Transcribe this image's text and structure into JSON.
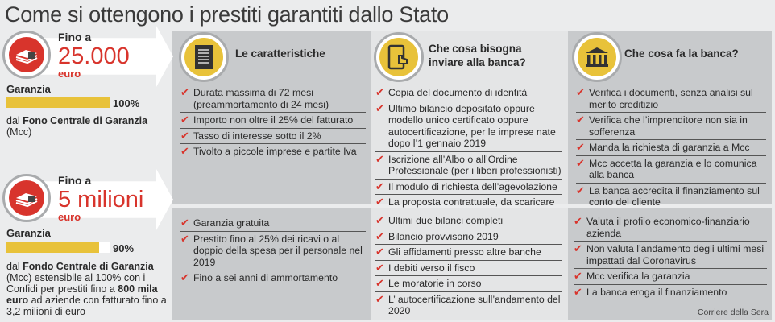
{
  "title": "Come si ottengono i prestiti garantiti dallo Stato",
  "colors": {
    "accent_red": "#d8342c",
    "yellow": "#e8c23a",
    "panel_dark": "#c8cacc",
    "panel_light": "#e4e5e6"
  },
  "tiers": [
    {
      "fino": "Fino a",
      "amount": "25.000",
      "unit": "euro",
      "garanzia_label": "Garanzia",
      "percent": 100,
      "percent_label": "100%",
      "desc": [
        {
          "t": "dal ",
          "b": false
        },
        {
          "t": "Fono Centrale",
          "b": true
        },
        {
          "t": " ",
          "b": false
        },
        {
          "t": "di Garanzia",
          "b": true
        },
        {
          "t": " (Mcc)",
          "b": false
        }
      ],
      "icon": "money-stack-icon"
    },
    {
      "fino": "Fino a",
      "amount": "5 milioni",
      "unit": "euro",
      "garanzia_label": "Garanzia",
      "percent": 90,
      "percent_label": "90%",
      "desc": [
        {
          "t": "dal ",
          "b": false
        },
        {
          "t": "Fondo Centrale di Garanzia",
          "b": true
        },
        {
          "t": " (Mcc) estensibile al 100% con i Confidi per prestiti fino a ",
          "b": false
        },
        {
          "t": "800 mila euro",
          "b": true
        },
        {
          "t": " ad aziende con fatturato fino a 3,2 milioni di euro",
          "b": false
        }
      ],
      "icon": "money-stack-icon"
    }
  ],
  "columns": [
    {
      "title": "Le caratteristiche",
      "icon": "document-icon",
      "top": [
        "Durata massima di 72 mesi (preammortamento di 24 mesi)",
        "Importo non oltre il 25% del fatturato",
        "Tasso di interesse sotto il 2%",
        "Tivolto a piccole imprese e partite Iva"
      ],
      "bottom": [
        "Garanzia gratuita",
        "Prestito fino al 25% dei ricavi o al doppio della spesa per il personale nel 2019",
        "Fino a sei anni di ammortamento"
      ]
    },
    {
      "title": "Che cosa bisogna inviare alla banca?",
      "icon": "tablet-touch-icon",
      "top": [
        "Copia del documento di identità",
        "Ultimo bilancio depositato oppure modello unico certificato  oppure autocertificazione, per le imprese nate dopo l’1 gennaio 2019",
        "Iscrizione all’Albo o all’Ordine Professionale (per i liberi professionisti)",
        "Il modulo di richiesta dell’agevolazione",
        "La proposta contrattuale, da scaricare"
      ],
      "bottom": [
        "Ultimi due bilanci completi",
        "Bilancio provvisorio 2019",
        "Gli affidamenti presso altre banche",
        "I debiti verso il fisco",
        "Le moratorie in corso",
        "L’ autocertificazione sull’andamento del 2020"
      ]
    },
    {
      "title": "Che cosa fa la banca?",
      "icon": "bank-icon",
      "top": [
        "Verifica i documenti, senza analisi sul merito creditizio",
        "Verifica che l’imprenditore non sia in sofferenza",
        "Manda la richiesta di garanzia a Mcc",
        "Mcc accetta la garanzia e lo comunica alla banca",
        "La banca accredita il finanziamento sul conto del cliente"
      ],
      "bottom": [
        "Valuta il profilo economico-finanziario azienda",
        "Non valuta l’andamento degli ultimi mesi impattati dal Coronavirus",
        "Mcc verifica la garanzia",
        "La banca eroga il finanziamento"
      ]
    }
  ],
  "source": "Corriere della Sera"
}
